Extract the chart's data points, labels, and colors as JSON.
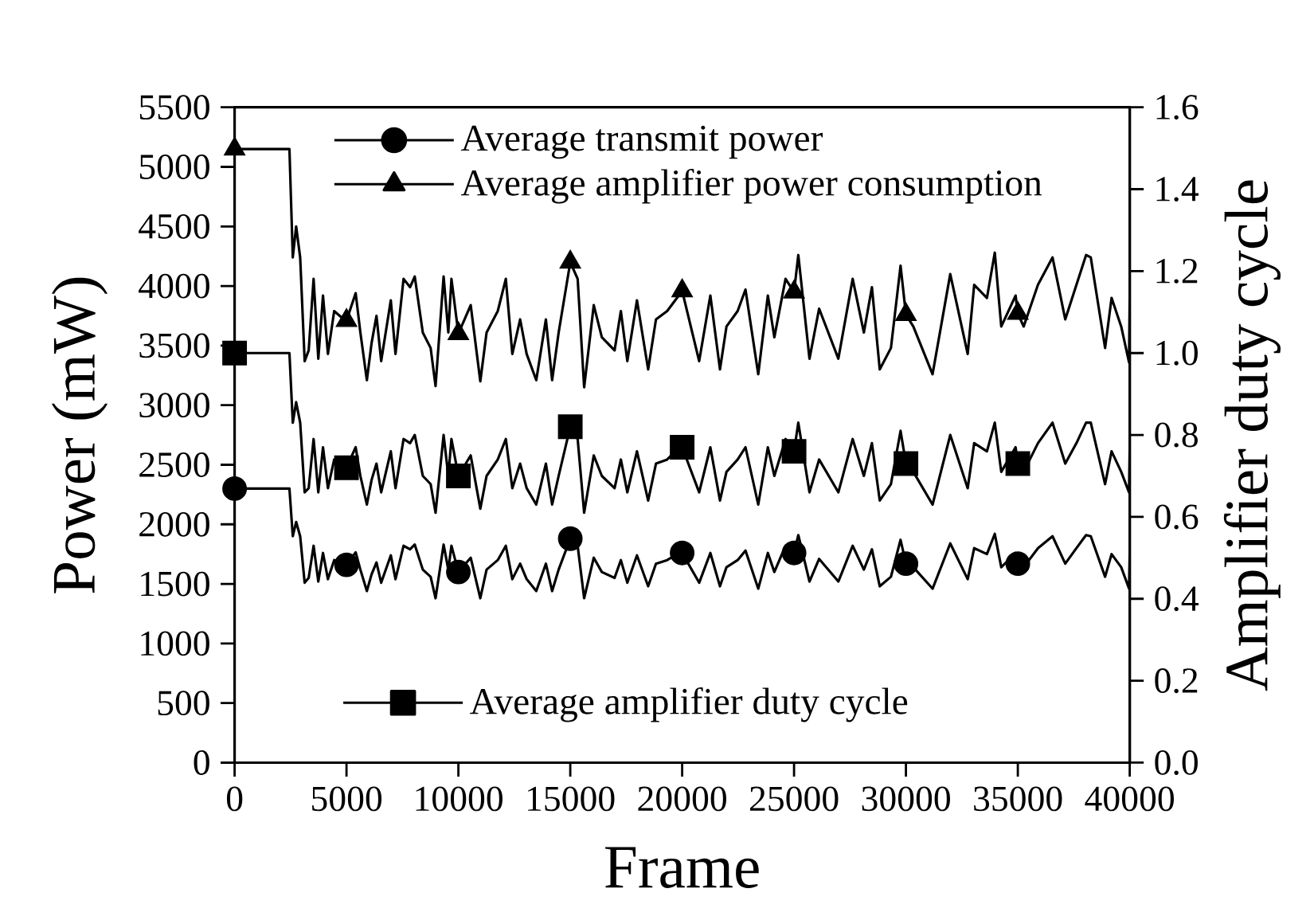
{
  "chart_data": {
    "type": "line",
    "xlabel": "Frame",
    "ylabel": "Power (mW)",
    "y2label": "Amplifier duty cycle",
    "x": [
      0,
      2450,
      2600,
      2750,
      2930,
      3130,
      3310,
      3530,
      3740,
      3950,
      4170,
      4450,
      4880,
      5000,
      5410,
      5620,
      5910,
      6120,
      6340,
      6550,
      6980,
      7190,
      7550,
      7840,
      8050,
      8410,
      8760,
      8980,
      9340,
      9550,
      9690,
      10000,
      10550,
      10980,
      11260,
      11760,
      12120,
      12410,
      12760,
      13050,
      13480,
      13910,
      14190,
      14480,
      15000,
      15330,
      15620,
      16050,
      16410,
      16980,
      17260,
      17550,
      17980,
      18480,
      18830,
      19330,
      19690,
      20000,
      20760,
      21260,
      21690,
      21980,
      22480,
      22830,
      23400,
      23830,
      24120,
      24620,
      25000,
      25190,
      25690,
      26120,
      26980,
      27620,
      28120,
      28480,
      28830,
      29330,
      29760,
      30000,
      30330,
      31190,
      31980,
      32760,
      33050,
      33620,
      33970,
      34260,
      34900,
      35000,
      35260,
      35900,
      36550,
      37120,
      37620,
      38050,
      38260,
      38900,
      39190,
      39620,
      39970,
      40000
    ],
    "series": [
      {
        "name": "Average transmit power",
        "color": "#000000",
        "values": [
          2300,
          2300,
          1900,
          2020,
          1900,
          1510,
          1550,
          1820,
          1520,
          1760,
          1540,
          1700,
          1670,
          1660,
          1765,
          1620,
          1440,
          1580,
          1680,
          1510,
          1740,
          1540,
          1820,
          1790,
          1830,
          1620,
          1560,
          1380,
          1830,
          1620,
          1820,
          1600,
          1720,
          1380,
          1620,
          1700,
          1820,
          1540,
          1670,
          1540,
          1440,
          1670,
          1440,
          1620,
          1880,
          1820,
          1380,
          1720,
          1600,
          1550,
          1700,
          1510,
          1740,
          1480,
          1670,
          1700,
          1740,
          1760,
          1510,
          1760,
          1480,
          1640,
          1700,
          1780,
          1460,
          1760,
          1600,
          1820,
          1760,
          1910,
          1520,
          1710,
          1520,
          1820,
          1620,
          1790,
          1480,
          1560,
          1870,
          1670,
          1640,
          1460,
          1840,
          1540,
          1800,
          1750,
          1920,
          1640,
          1760,
          1670,
          1640,
          1800,
          1900,
          1670,
          1800,
          1910,
          1900,
          1560,
          1750,
          1640,
          1460,
          1760
        ]
      },
      {
        "type": "scatter",
        "color": "#000000",
        "marker": "circle",
        "x": [
          0,
          5000,
          10000,
          15000,
          20000,
          25000,
          30000,
          35000
        ],
        "values": [
          2300,
          1660,
          1600,
          1880,
          1760,
          1760,
          1670,
          1670
        ]
      },
      {
        "name": "Average amplifier power consumption",
        "color": "#000000",
        "values": [
          5150,
          5150,
          4240,
          4500,
          4240,
          3370,
          3460,
          4060,
          3390,
          3920,
          3430,
          3790,
          3720,
          3710,
          3940,
          3610,
          3210,
          3520,
          3750,
          3370,
          3880,
          3430,
          4060,
          3990,
          4080,
          3610,
          3480,
          3160,
          4080,
          3610,
          4060,
          3600,
          3840,
          3200,
          3610,
          3790,
          4060,
          3430,
          3720,
          3430,
          3210,
          3720,
          3210,
          3610,
          4200,
          4060,
          3150,
          3840,
          3570,
          3460,
          3790,
          3370,
          3880,
          3300,
          3720,
          3790,
          3880,
          3960,
          3370,
          3920,
          3300,
          3660,
          3790,
          3970,
          3260,
          3920,
          3570,
          4060,
          3950,
          4260,
          3390,
          3810,
          3390,
          4060,
          3610,
          3990,
          3300,
          3480,
          4170,
          3760,
          3660,
          3260,
          4100,
          3430,
          4010,
          3900,
          4280,
          3660,
          3920,
          3770,
          3660,
          4010,
          4240,
          3720,
          4010,
          4260,
          4240,
          3480,
          3900,
          3660,
          3360,
          3920
        ]
      },
      {
        "type": "scatter",
        "color": "#000000",
        "marker": "triangle",
        "x": [
          0,
          5000,
          10000,
          15000,
          20000,
          25000,
          30000,
          35000
        ],
        "values": [
          5150,
          3710,
          3600,
          4200,
          3960,
          3950,
          3760,
          3770
        ]
      },
      {
        "name": "Average amplifier duty cycle",
        "color": "#000000",
        "axis": "y2",
        "values": [
          1.0,
          1.0,
          0.83,
          0.88,
          0.83,
          0.66,
          0.67,
          0.79,
          0.66,
          0.77,
          0.67,
          0.74,
          0.73,
          0.72,
          0.77,
          0.7,
          0.63,
          0.69,
          0.73,
          0.66,
          0.76,
          0.67,
          0.79,
          0.78,
          0.8,
          0.7,
          0.68,
          0.61,
          0.8,
          0.7,
          0.79,
          0.7,
          0.75,
          0.62,
          0.7,
          0.74,
          0.79,
          0.67,
          0.73,
          0.67,
          0.63,
          0.73,
          0.63,
          0.7,
          0.82,
          0.79,
          0.61,
          0.75,
          0.7,
          0.67,
          0.74,
          0.66,
          0.76,
          0.64,
          0.73,
          0.74,
          0.76,
          0.77,
          0.66,
          0.77,
          0.64,
          0.71,
          0.74,
          0.77,
          0.63,
          0.77,
          0.7,
          0.79,
          0.76,
          0.83,
          0.66,
          0.74,
          0.66,
          0.79,
          0.7,
          0.78,
          0.64,
          0.68,
          0.81,
          0.73,
          0.71,
          0.63,
          0.8,
          0.67,
          0.78,
          0.76,
          0.83,
          0.71,
          0.77,
          0.73,
          0.71,
          0.78,
          0.83,
          0.73,
          0.78,
          0.83,
          0.83,
          0.68,
          0.76,
          0.71,
          0.66,
          0.77
        ]
      },
      {
        "type": "scatter",
        "color": "#000000",
        "marker": "square",
        "axis": "y2",
        "x": [
          0,
          5000,
          10000,
          15000,
          20000,
          25000,
          30000,
          35000
        ],
        "values": [
          1.0,
          0.72,
          0.7,
          0.82,
          0.77,
          0.76,
          0.73,
          0.73
        ]
      }
    ],
    "xlim": [
      0,
      40000
    ],
    "xticks": [
      0,
      5000,
      10000,
      15000,
      20000,
      25000,
      30000,
      35000,
      40000
    ],
    "ylim": [
      0,
      5500
    ],
    "yticks": [
      0,
      500,
      1000,
      1500,
      2000,
      2500,
      3000,
      3500,
      4000,
      4500,
      5000,
      5500
    ],
    "y2lim": [
      0,
      1.6
    ],
    "y2ticks": [
      {
        "value": 0,
        "label": "0.0"
      },
      {
        "value": 0.2,
        "label": "0.2"
      },
      {
        "value": 0.4,
        "label": "0.4"
      },
      {
        "value": 0.6,
        "label": "0.6"
      },
      {
        "value": 0.8,
        "label": "0.8"
      },
      {
        "value": 1.0,
        "label": "1.0"
      },
      {
        "value": 1.2,
        "label": "1.2"
      },
      {
        "value": 1.4,
        "label": "1.4"
      },
      {
        "value": 1.6,
        "label": "1.6"
      }
    ],
    "legend": "top left",
    "line_style": "solid",
    "grid": false
  }
}
